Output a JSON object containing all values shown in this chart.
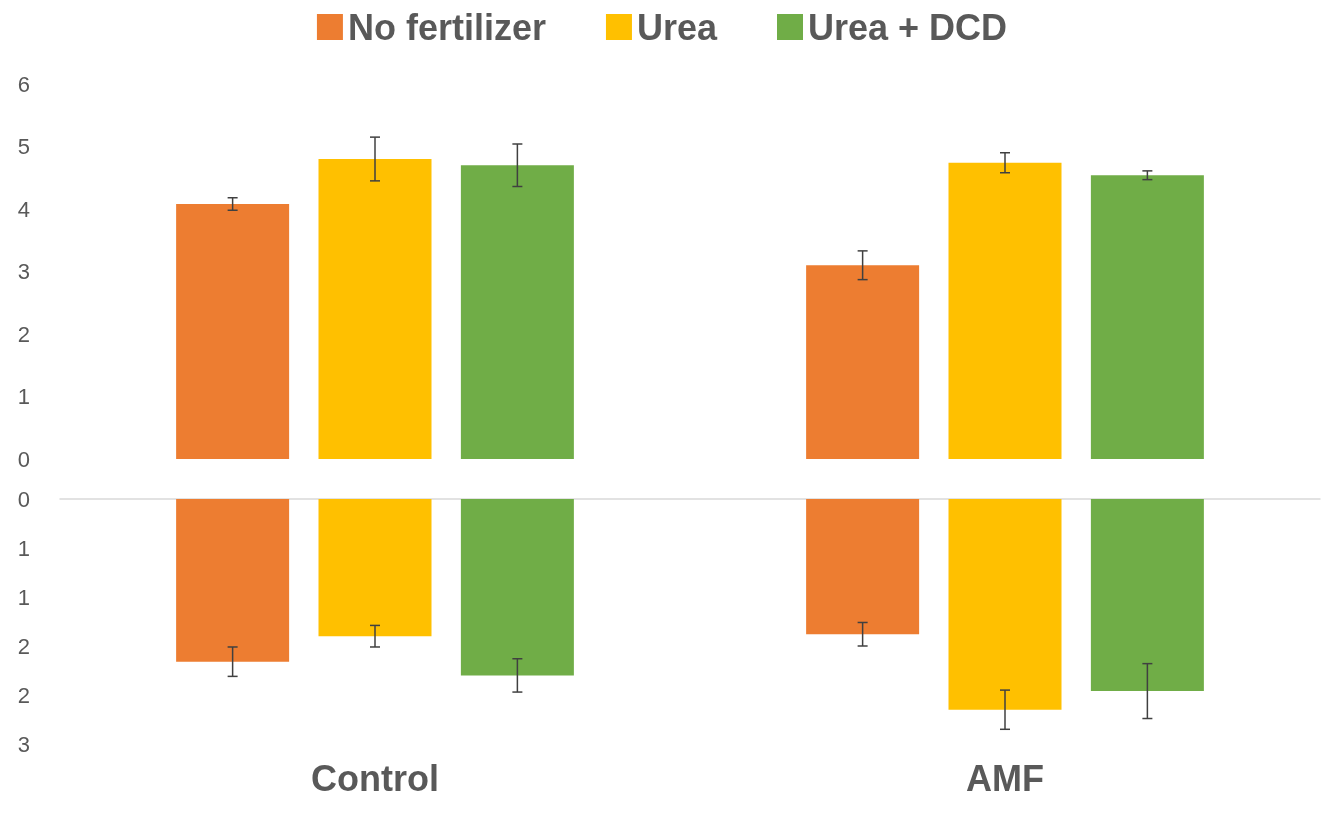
{
  "chart_data": [
    {
      "type": "bar",
      "categories": [
        null,
        null
      ],
      "legend": "top",
      "tick_labels": "y",
      "ylim": [
        0,
        6
      ],
      "yticks": [
        0,
        1,
        2,
        3,
        4,
        5,
        6
      ],
      "grid": false,
      "series": [
        {
          "name": "No fertilizer",
          "color": "#ed7d31",
          "values": [
            4.08,
            3.1
          ],
          "errors": [
            0.1,
            0.23
          ]
        },
        {
          "name": "Urea",
          "color": "#ffc000",
          "values": [
            4.8,
            4.74
          ],
          "errors": [
            0.35,
            0.16
          ]
        },
        {
          "name": "Urea + DCD",
          "color": "#70ad47",
          "values": [
            4.7,
            4.54
          ],
          "errors": [
            0.34,
            0.07
          ]
        }
      ]
    },
    {
      "type": "bar",
      "categories": [
        "Control",
        "AMF"
      ],
      "legend": false,
      "ylim": [
        2.5,
        0
      ],
      "yticks": [
        0,
        {
          "value": 0.5,
          "label": "1"
        },
        {
          "value": 1,
          "label": "1"
        },
        {
          "value": 1.5,
          "label": "2"
        },
        {
          "value": 2,
          "label": "2"
        },
        {
          "value": 2.5,
          "label": "3"
        }
      ],
      "grid": false,
      "series": [
        {
          "color": "#ed7d31",
          "values": [
            1.66,
            1.38
          ],
          "errors": [
            0.15,
            0.12
          ]
        },
        {
          "color": "#ffc000",
          "values": [
            1.4,
            2.15
          ],
          "errors": [
            0.11,
            0.2
          ]
        },
        {
          "color": "#70ad47",
          "values": [
            1.8,
            1.96
          ],
          "errors": [
            0.17,
            0.28
          ]
        }
      ]
    }
  ]
}
